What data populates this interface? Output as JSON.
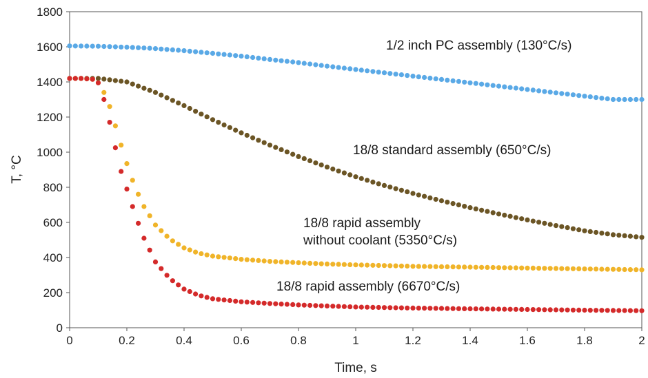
{
  "chart_data": {
    "type": "scatter",
    "title": "",
    "xlabel": "Time, s",
    "ylabel": "T, °C",
    "xlim": [
      0,
      2
    ],
    "ylim": [
      0,
      1800
    ],
    "x_ticks": [
      "0",
      "0.2",
      "0.4",
      "0.6",
      "0.8",
      "1",
      "1.2",
      "1.4",
      "1.6",
      "1.8",
      "2"
    ],
    "y_ticks": [
      "0",
      "200",
      "400",
      "600",
      "800",
      "1000",
      "1200",
      "1400",
      "1600",
      "1800"
    ],
    "grid": false,
    "legend": "none",
    "series": [
      {
        "key": "pc",
        "color": "#5aa9e6",
        "x": [
          0,
          0.1,
          0.2,
          0.3,
          0.4,
          0.5,
          0.6,
          0.7,
          0.8,
          0.9,
          1.0,
          1.1,
          1.2,
          1.3,
          1.4,
          1.5,
          1.6,
          1.7,
          1.8,
          1.9,
          2.0
        ],
        "y": [
          1605,
          1603,
          1598,
          1590,
          1578,
          1563,
          1547,
          1528,
          1510,
          1490,
          1471,
          1452,
          1433,
          1414,
          1395,
          1376,
          1357,
          1338,
          1319,
          1300,
          1300
        ],
        "step": 0.02
      },
      {
        "key": "standard",
        "color": "#6b5525",
        "x": [
          0,
          0.1,
          0.2,
          0.3,
          0.4,
          0.5,
          0.6,
          0.7,
          0.8,
          0.9,
          1.0,
          1.1,
          1.2,
          1.3,
          1.4,
          1.5,
          1.6,
          1.7,
          1.8,
          1.9,
          2.0
        ],
        "y": [
          1420,
          1420,
          1400,
          1340,
          1265,
          1185,
          1110,
          1040,
          975,
          915,
          860,
          810,
          765,
          723,
          684,
          648,
          614,
          582,
          552,
          530,
          515
        ],
        "step": 0.02
      },
      {
        "key": "without_coolant",
        "color": "#f0b429",
        "x": [
          0,
          0.04,
          0.08,
          0.1,
          0.12,
          0.14,
          0.16,
          0.18,
          0.2,
          0.22,
          0.24,
          0.26,
          0.3,
          0.35,
          0.4,
          0.45,
          0.5,
          0.6,
          0.7,
          0.8,
          0.9,
          1.0,
          1.2,
          1.4,
          1.6,
          1.8,
          2.0
        ],
        "y": [
          1420,
          1420,
          1415,
          1395,
          1340,
          1260,
          1150,
          1040,
          935,
          840,
          760,
          690,
          585,
          505,
          455,
          425,
          408,
          390,
          378,
          370,
          363,
          358,
          350,
          345,
          340,
          335,
          330
        ],
        "step": 0.02
      },
      {
        "key": "rapid",
        "color": "#d42a2a",
        "x": [
          0,
          0.04,
          0.08,
          0.1,
          0.12,
          0.14,
          0.16,
          0.18,
          0.2,
          0.22,
          0.24,
          0.26,
          0.3,
          0.35,
          0.4,
          0.45,
          0.5,
          0.6,
          0.7,
          0.8,
          0.9,
          1.0,
          1.2,
          1.4,
          1.6,
          1.8,
          2.0
        ],
        "y": [
          1420,
          1420,
          1415,
          1395,
          1300,
          1170,
          1025,
          890,
          790,
          690,
          595,
          510,
          375,
          280,
          220,
          185,
          165,
          148,
          138,
          130,
          124,
          118,
          112,
          108,
          104,
          100,
          97
        ],
        "step": 0.02
      }
    ],
    "annotations": [
      {
        "key": "pc",
        "lines": [
          "1/2 inch PC assembly (130°C/s)"
        ]
      },
      {
        "key": "standard",
        "lines": [
          "18/8 standard assembly (650°C/s)"
        ]
      },
      {
        "key": "without_coolant",
        "lines": [
          "18/8 rapid assembly",
          "without coolant (5350°C/s)"
        ]
      },
      {
        "key": "rapid",
        "lines": [
          "18/8 rapid assembly (6670°C/s)"
        ]
      }
    ]
  }
}
